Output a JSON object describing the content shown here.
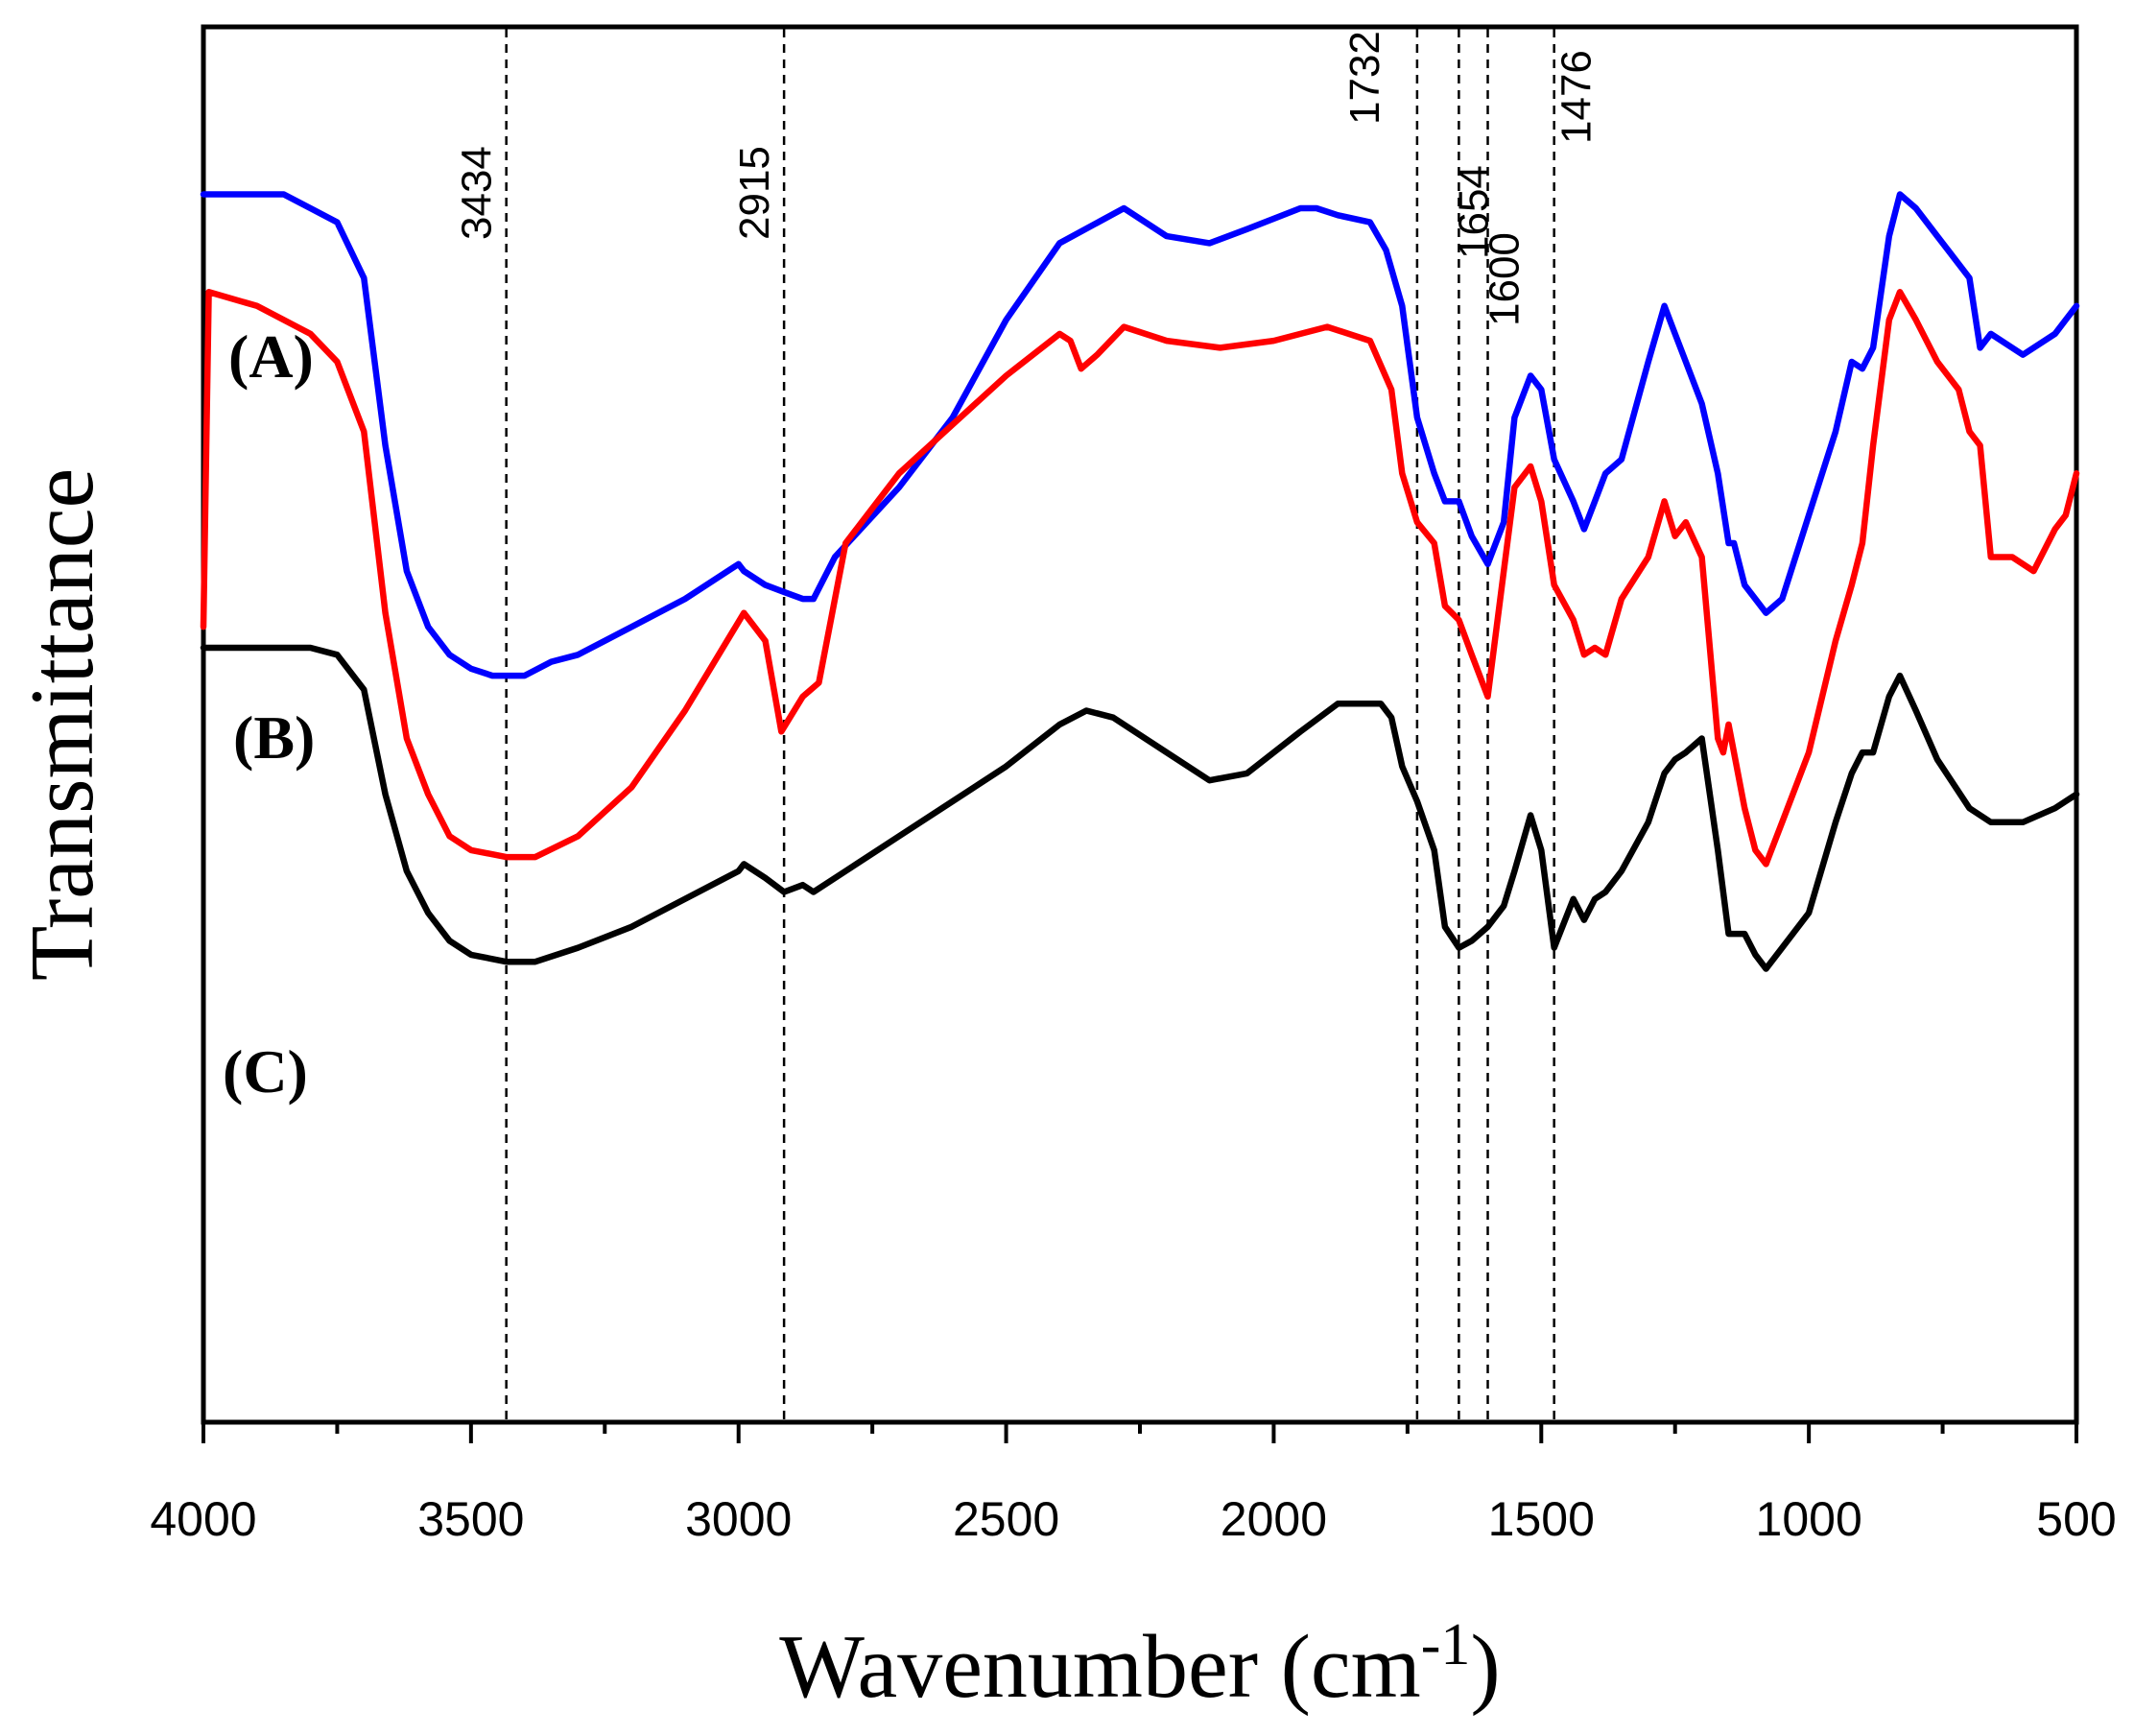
{
  "chart_data": {
    "type": "line",
    "title": "",
    "xlabel": "Wavenumber (cm-1)",
    "xlabel_main": "Wavenumber (cm",
    "xlabel_sup": "-1",
    "xlabel_close": ")",
    "ylabel": "Transmittance",
    "xlim": [
      4000,
      500
    ],
    "ylim": [
      0,
      100
    ],
    "x_ticks": [
      4000,
      3500,
      3000,
      2500,
      2000,
      1500,
      1000,
      500
    ],
    "x_tick_labels": [
      "4000",
      "3500",
      "3000",
      "2500",
      "2000",
      "1500",
      "1000",
      "500"
    ],
    "peak_markers": [
      {
        "label": "3434",
        "x": 3434
      },
      {
        "label": "2915",
        "x": 2915
      },
      {
        "label": "1732",
        "x": 1732
      },
      {
        "label": "1654",
        "x": 1654
      },
      {
        "label": "1600",
        "x": 1600
      },
      {
        "label": "1476",
        "x": 1476
      }
    ],
    "series": [
      {
        "name": "(A)",
        "color": "#0000ff",
        "x": [
          4000,
          3850,
          3800,
          3750,
          3700,
          3660,
          3620,
          3580,
          3540,
          3500,
          3460,
          3434,
          3400,
          3350,
          3300,
          3200,
          3100,
          3000,
          2990,
          2950,
          2915,
          2880,
          2860,
          2820,
          2700,
          2600,
          2500,
          2400,
          2280,
          2200,
          2120,
          2050,
          1950,
          1920,
          1880,
          1820,
          1790,
          1760,
          1732,
          1700,
          1680,
          1654,
          1630,
          1600,
          1570,
          1550,
          1520,
          1500,
          1476,
          1440,
          1420,
          1400,
          1380,
          1350,
          1300,
          1270,
          1250,
          1230,
          1200,
          1170,
          1150,
          1140,
          1120,
          1100,
          1080,
          1050,
          1000,
          950,
          920,
          900,
          880,
          850,
          830,
          800,
          760,
          700,
          680,
          660,
          600,
          540,
          520,
          500
        ],
        "y": [
          88,
          88,
          87,
          86,
          82,
          70,
          61,
          57,
          55,
          54,
          53.5,
          53.5,
          53.5,
          54.5,
          55,
          57,
          59,
          61.5,
          61,
          60,
          59.5,
          59,
          59,
          62,
          67,
          72,
          79,
          84.5,
          87,
          85,
          84.5,
          85.5,
          87,
          87,
          86.5,
          86,
          84,
          80,
          72,
          68,
          66,
          66,
          63.5,
          61.5,
          64.5,
          72,
          75,
          74,
          69,
          66,
          64,
          66,
          68,
          69,
          76,
          80,
          78,
          76,
          73,
          68,
          63,
          63,
          60,
          59,
          58,
          59,
          65,
          71,
          76,
          75.5,
          77,
          85,
          88,
          87,
          85,
          82,
          77,
          78,
          76.5,
          78,
          79,
          80
        ]
      },
      {
        "name": "(B)",
        "color": "#ff0000",
        "x": [
          4000,
          3990,
          3900,
          3800,
          3750,
          3700,
          3660,
          3620,
          3580,
          3540,
          3500,
          3434,
          3380,
          3300,
          3200,
          3100,
          2990,
          2950,
          2920,
          2880,
          2850,
          2800,
          2700,
          2600,
          2500,
          2400,
          2380,
          2360,
          2330,
          2280,
          2200,
          2100,
          2000,
          1900,
          1820,
          1780,
          1760,
          1732,
          1700,
          1680,
          1654,
          1630,
          1600,
          1570,
          1550,
          1520,
          1500,
          1476,
          1440,
          1420,
          1400,
          1380,
          1350,
          1300,
          1270,
          1250,
          1230,
          1200,
          1170,
          1160,
          1150,
          1140,
          1120,
          1100,
          1080,
          1050,
          1000,
          950,
          920,
          900,
          880,
          850,
          830,
          800,
          760,
          720,
          700,
          680,
          660,
          620,
          580,
          540,
          520,
          500
        ],
        "y": [
          57,
          81,
          80,
          78,
          76,
          71,
          58,
          49,
          45,
          42,
          41,
          40.5,
          40.5,
          42,
          45.5,
          51,
          58,
          56,
          49.5,
          52,
          53,
          63,
          68,
          71.5,
          75,
          78,
          77.5,
          75.5,
          76.5,
          78.5,
          77.5,
          77,
          77.5,
          78.5,
          77.5,
          74,
          68,
          64.5,
          63,
          58.5,
          57.5,
          55,
          52,
          61,
          67,
          68.5,
          66,
          60,
          57.5,
          55,
          55.5,
          55,
          59,
          62,
          66,
          63.5,
          64.5,
          62,
          49,
          48,
          50,
          48,
          44,
          41,
          40,
          43,
          48,
          56,
          60,
          63,
          70,
          79,
          81,
          79,
          76,
          74,
          71,
          70,
          62,
          62,
          61,
          64,
          65,
          68
        ]
      },
      {
        "name": "(C)",
        "color": "#000000",
        "x": [
          4000,
          3900,
          3800,
          3750,
          3700,
          3660,
          3620,
          3580,
          3540,
          3500,
          3434,
          3380,
          3300,
          3200,
          3100,
          3000,
          2990,
          2950,
          2915,
          2880,
          2860,
          2800,
          2700,
          2600,
          2500,
          2400,
          2350,
          2300,
          2200,
          2120,
          2050,
          1950,
          1880,
          1800,
          1780,
          1760,
          1732,
          1700,
          1680,
          1654,
          1630,
          1600,
          1570,
          1550,
          1520,
          1500,
          1476,
          1440,
          1420,
          1400,
          1380,
          1350,
          1300,
          1270,
          1250,
          1230,
          1200,
          1170,
          1150,
          1120,
          1100,
          1080,
          1050,
          1000,
          950,
          920,
          900,
          880,
          850,
          830,
          800,
          760,
          700,
          660,
          600,
          540,
          500
        ],
        "y": [
          55.5,
          55.5,
          55.5,
          55,
          52.5,
          45,
          39.5,
          36.5,
          34.5,
          33.5,
          33,
          33,
          34,
          35.5,
          37.5,
          39.5,
          40,
          39,
          38,
          38.5,
          38,
          39.5,
          42,
          44.5,
          47,
          50,
          51,
          50.5,
          48,
          46,
          46.5,
          49.5,
          51.5,
          51.5,
          50.5,
          47,
          44.5,
          41,
          35.5,
          34,
          34.5,
          35.5,
          37,
          39.5,
          43.5,
          41,
          34,
          37.5,
          36,
          37.5,
          38,
          39.5,
          43,
          46.5,
          47.5,
          48,
          49,
          41,
          35,
          35,
          33.5,
          32.5,
          34,
          36.5,
          43,
          46.5,
          48,
          48,
          52,
          53.5,
          51,
          47.5,
          44,
          43,
          43,
          44,
          45
        ]
      }
    ]
  }
}
